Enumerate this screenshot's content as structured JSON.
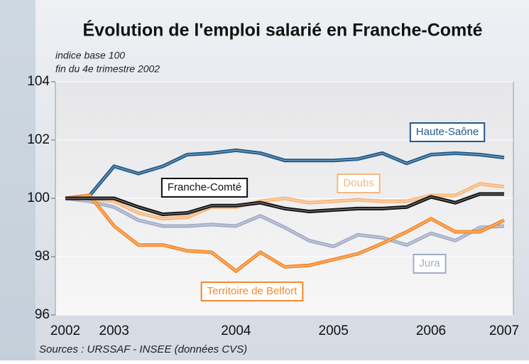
{
  "chart_data": {
    "type": "line",
    "title": "Évolution de l'emploi salarié en Franche-Comté",
    "subtitle": [
      "indice base 100",
      "fin du 4e trimestre 2002"
    ],
    "source": "Sources : URSSAF - INSEE (données CVS)",
    "categories": [
      "2002",
      null,
      "2003",
      null,
      null,
      null,
      null,
      "2004",
      null,
      null,
      null,
      "2005",
      null,
      null,
      null,
      "2006",
      null,
      null,
      "2007"
    ],
    "series": [
      {
        "name": "Haute-Saône",
        "color": "#1f5a8a",
        "values": [
          100,
          100.1,
          101.1,
          100.85,
          101.1,
          101.5,
          101.55,
          101.65,
          101.55,
          101.3,
          101.3,
          101.3,
          101.35,
          101.55,
          101.2,
          101.5,
          101.55,
          101.5,
          101.4
        ]
      },
      {
        "name": "Doubs",
        "color": "#f7b77a",
        "values": [
          100,
          100,
          99.9,
          99.5,
          99.3,
          99.35,
          99.7,
          99.7,
          99.9,
          100,
          99.85,
          99.9,
          99.95,
          99.9,
          99.9,
          100.1,
          100.1,
          100.5,
          100.4
        ]
      },
      {
        "name": "Jura",
        "color": "#a3abc6",
        "values": [
          100,
          99.9,
          99.7,
          99.25,
          99.05,
          99.05,
          99.1,
          99.05,
          99.4,
          99.0,
          98.55,
          98.35,
          98.75,
          98.65,
          98.4,
          98.8,
          98.55,
          99.0,
          99.05
        ]
      },
      {
        "name": "Territoire de Belfort",
        "color": "#f5892b",
        "values": [
          100,
          100.1,
          99.05,
          98.4,
          98.4,
          98.2,
          98.15,
          97.5,
          98.15,
          97.65,
          97.7,
          97.9,
          98.1,
          98.45,
          98.85,
          99.3,
          98.85,
          98.85,
          99.25
        ]
      },
      {
        "name": "Franche-Comté",
        "color": "#111111",
        "values": [
          100,
          100,
          100,
          99.7,
          99.45,
          99.5,
          99.75,
          99.75,
          99.85,
          99.65,
          99.55,
          99.6,
          99.65,
          99.65,
          99.7,
          100.05,
          99.85,
          100.15,
          100.15
        ]
      }
    ],
    "ylim": [
      96,
      104
    ],
    "yticks": [
      96,
      98,
      100,
      102,
      104
    ],
    "grid": true
  }
}
